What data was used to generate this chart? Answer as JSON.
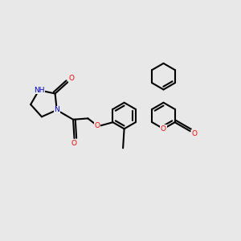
{
  "background_color": "#e8e8e8",
  "bond_color": "#000000",
  "bond_width": 1.5,
  "atom_colors": {
    "O": "#ff0000",
    "N": "#0000cd",
    "C": "#000000"
  },
  "figsize": [
    3.0,
    3.0
  ],
  "dpi": 100
}
